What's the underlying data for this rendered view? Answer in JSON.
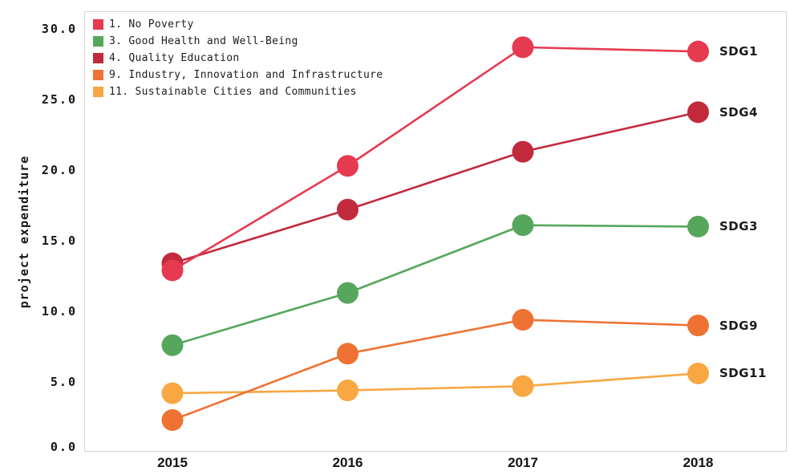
{
  "chart_data": {
    "type": "line",
    "title": "",
    "xlabel": "",
    "ylabel": "project expenditure",
    "x": [
      "2015",
      "2016",
      "2017",
      "2018"
    ],
    "ylim": [
      0,
      31.2
    ],
    "ytick_values": [
      0,
      5,
      10,
      15,
      20,
      25,
      30
    ],
    "ytick_labels": [
      "0.0",
      "5.0",
      "10.0",
      "15.0",
      "20.0",
      "25.0",
      "30.0"
    ],
    "grid": false,
    "legend_position": "top-left",
    "marker_style": "filled-circle",
    "series": [
      {
        "id": "SDG1",
        "legend_label": "1. No Poverty",
        "end_label": "SDG1",
        "color": "#e53a50",
        "values": [
          12.9,
          20.3,
          28.7,
          28.4
        ]
      },
      {
        "id": "SDG3",
        "legend_label": "3. Good Health and Well-Being",
        "end_label": "SDG3",
        "color": "#56a75c",
        "values": [
          7.6,
          11.3,
          16.1,
          16.0
        ]
      },
      {
        "id": "SDG4",
        "legend_label": "4. Quality Education",
        "end_label": "SDG4",
        "color": "#c22a3c",
        "values": [
          13.4,
          17.2,
          21.3,
          24.1
        ]
      },
      {
        "id": "SDG9",
        "legend_label": "9. Industry, Innovation and Infrastructure",
        "end_label": "SDG9",
        "color": "#ee7233",
        "values": [
          2.3,
          7.0,
          9.4,
          9.0
        ]
      },
      {
        "id": "SDG11",
        "legend_label": "11. Sustainable Cities and Communities",
        "end_label": "SDG11",
        "color": "#f8a743",
        "values": [
          4.2,
          4.4,
          4.7,
          5.6
        ]
      }
    ]
  }
}
